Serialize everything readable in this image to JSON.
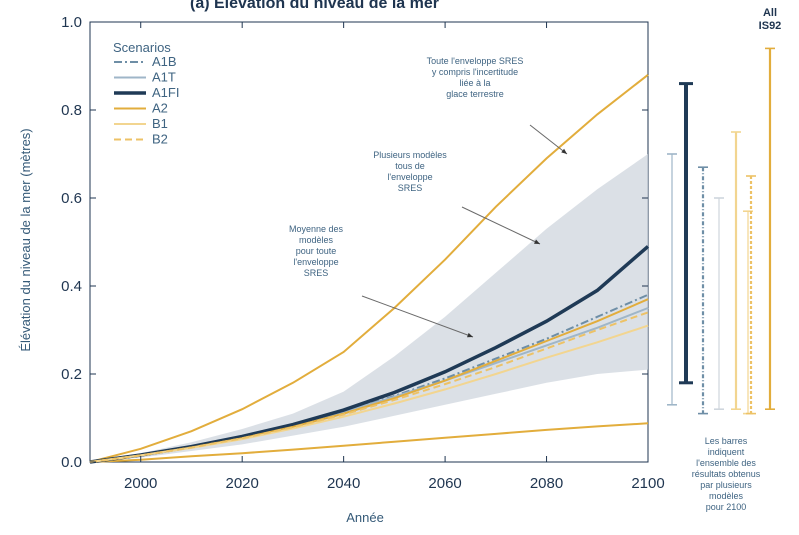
{
  "chart_data": {
    "type": "line",
    "title": "(a) Élévation du niveau de la mer",
    "xlabel": "Année",
    "ylabel": "Élévation du niveau de la mer (mètres)",
    "xlim": [
      1990,
      2100
    ],
    "ylim": [
      0,
      1.0
    ],
    "xticks": [
      2000,
      2020,
      2040,
      2060,
      2080,
      2100
    ],
    "yticks": [
      0.0,
      0.2,
      0.4,
      0.6,
      0.8,
      1.0
    ],
    "yticks_labels": [
      "0.0",
      "0.2",
      "0.4",
      "0.6",
      "0.8",
      "1.0"
    ],
    "grid": false,
    "legend": {
      "title": "Scenarios",
      "position": "top-left",
      "entries": [
        "A1B",
        "A1T",
        "A1FI",
        "A2",
        "B1",
        "B2"
      ]
    },
    "x": [
      1990,
      2000,
      2010,
      2020,
      2030,
      2040,
      2050,
      2060,
      2070,
      2080,
      2090,
      2100
    ],
    "envelopes": [
      {
        "label": "all_sres_with_ice_uncertainty",
        "upper": [
          0.0,
          0.03,
          0.07,
          0.12,
          0.18,
          0.25,
          0.35,
          0.46,
          0.58,
          0.69,
          0.79,
          0.88
        ],
        "lower": [
          0.0,
          0.005,
          0.013,
          0.02,
          0.028,
          0.037,
          0.046,
          0.055,
          0.064,
          0.073,
          0.081,
          0.088
        ],
        "color": "#e2ad3c"
      },
      {
        "label": "several_models_all_sres",
        "upper": [
          0.0,
          0.02,
          0.045,
          0.075,
          0.11,
          0.16,
          0.24,
          0.33,
          0.43,
          0.53,
          0.62,
          0.7
        ],
        "lower": [
          0.0,
          0.01,
          0.025,
          0.04,
          0.06,
          0.08,
          0.105,
          0.13,
          0.155,
          0.18,
          0.2,
          0.21
        ],
        "color": "#cfd6dd"
      }
    ],
    "series": [
      {
        "name": "A1B",
        "values": [
          0.0,
          0.015,
          0.034,
          0.056,
          0.083,
          0.115,
          0.15,
          0.19,
          0.235,
          0.28,
          0.33,
          0.38
        ],
        "color": "#6e8ea6",
        "style": "dashdot"
      },
      {
        "name": "A1T",
        "values": [
          0.0,
          0.015,
          0.034,
          0.056,
          0.083,
          0.114,
          0.148,
          0.185,
          0.225,
          0.265,
          0.305,
          0.35
        ],
        "color": "#9fb6c8",
        "style": "solid"
      },
      {
        "name": "A1FI",
        "values": [
          0.0,
          0.016,
          0.035,
          0.058,
          0.085,
          0.118,
          0.158,
          0.205,
          0.26,
          0.32,
          0.39,
          0.49
        ],
        "color": "#1f3a56",
        "style": "thick"
      },
      {
        "name": "A2",
        "values": [
          0.0,
          0.015,
          0.033,
          0.054,
          0.08,
          0.11,
          0.145,
          0.185,
          0.23,
          0.275,
          0.32,
          0.37
        ],
        "color": "#e2ad3c",
        "style": "solid"
      },
      {
        "name": "B1",
        "values": [
          0.0,
          0.015,
          0.032,
          0.052,
          0.076,
          0.103,
          0.133,
          0.165,
          0.2,
          0.237,
          0.272,
          0.31
        ],
        "color": "#f2d590",
        "style": "solid"
      },
      {
        "name": "B2",
        "values": [
          0.0,
          0.015,
          0.033,
          0.054,
          0.079,
          0.108,
          0.141,
          0.177,
          0.216,
          0.258,
          0.3,
          0.34
        ],
        "color": "#edc266",
        "style": "dashed"
      }
    ],
    "annotations": [
      {
        "lines": [
          "Toute l'enveloppe SRES",
          "y compris l'incertitude",
          "liée à la",
          "glace terrestre"
        ]
      },
      {
        "lines": [
          "Plusieurs modèles",
          "tous de",
          "l'enveloppe",
          "SRES"
        ]
      },
      {
        "lines": [
          "Moyenne des",
          "modèles",
          "pour toute",
          "l'enveloppe",
          "SRES"
        ]
      },
      {
        "lines": [
          "Les barres",
          "indiquent",
          "l'ensemble des",
          "résultats obtenus",
          "par plusieurs",
          "modèles",
          "pour 2100"
        ]
      }
    ],
    "range_bars_2100": [
      {
        "name": "all_sres_thin",
        "low": 0.13,
        "high": 0.7,
        "color": "#9fb6c8",
        "style": "thin"
      },
      {
        "name": "A1FI",
        "low": 0.18,
        "high": 0.86,
        "color": "#1f3a56",
        "style": "thick"
      },
      {
        "name": "A1B",
        "low": 0.11,
        "high": 0.67,
        "color": "#6e8ea6",
        "style": "dashdot"
      },
      {
        "name": "A1T",
        "low": 0.12,
        "high": 0.6,
        "color": "#cfd6dd",
        "style": "thin"
      },
      {
        "name": "A2",
        "low": 0.12,
        "high": 0.75,
        "color": "#f2d590",
        "style": "solid"
      },
      {
        "name": "B1",
        "low": 0.11,
        "high": 0.57,
        "color": "#f2d590",
        "style": "thin"
      },
      {
        "name": "B2",
        "low": 0.11,
        "high": 0.65,
        "color": "#edc266",
        "style": "dashed"
      },
      {
        "name": "All IS92",
        "low": 0.12,
        "high": 0.94,
        "color": "#e2ad3c",
        "style": "solid"
      }
    ],
    "is92_label": [
      "All",
      "IS92"
    ]
  }
}
